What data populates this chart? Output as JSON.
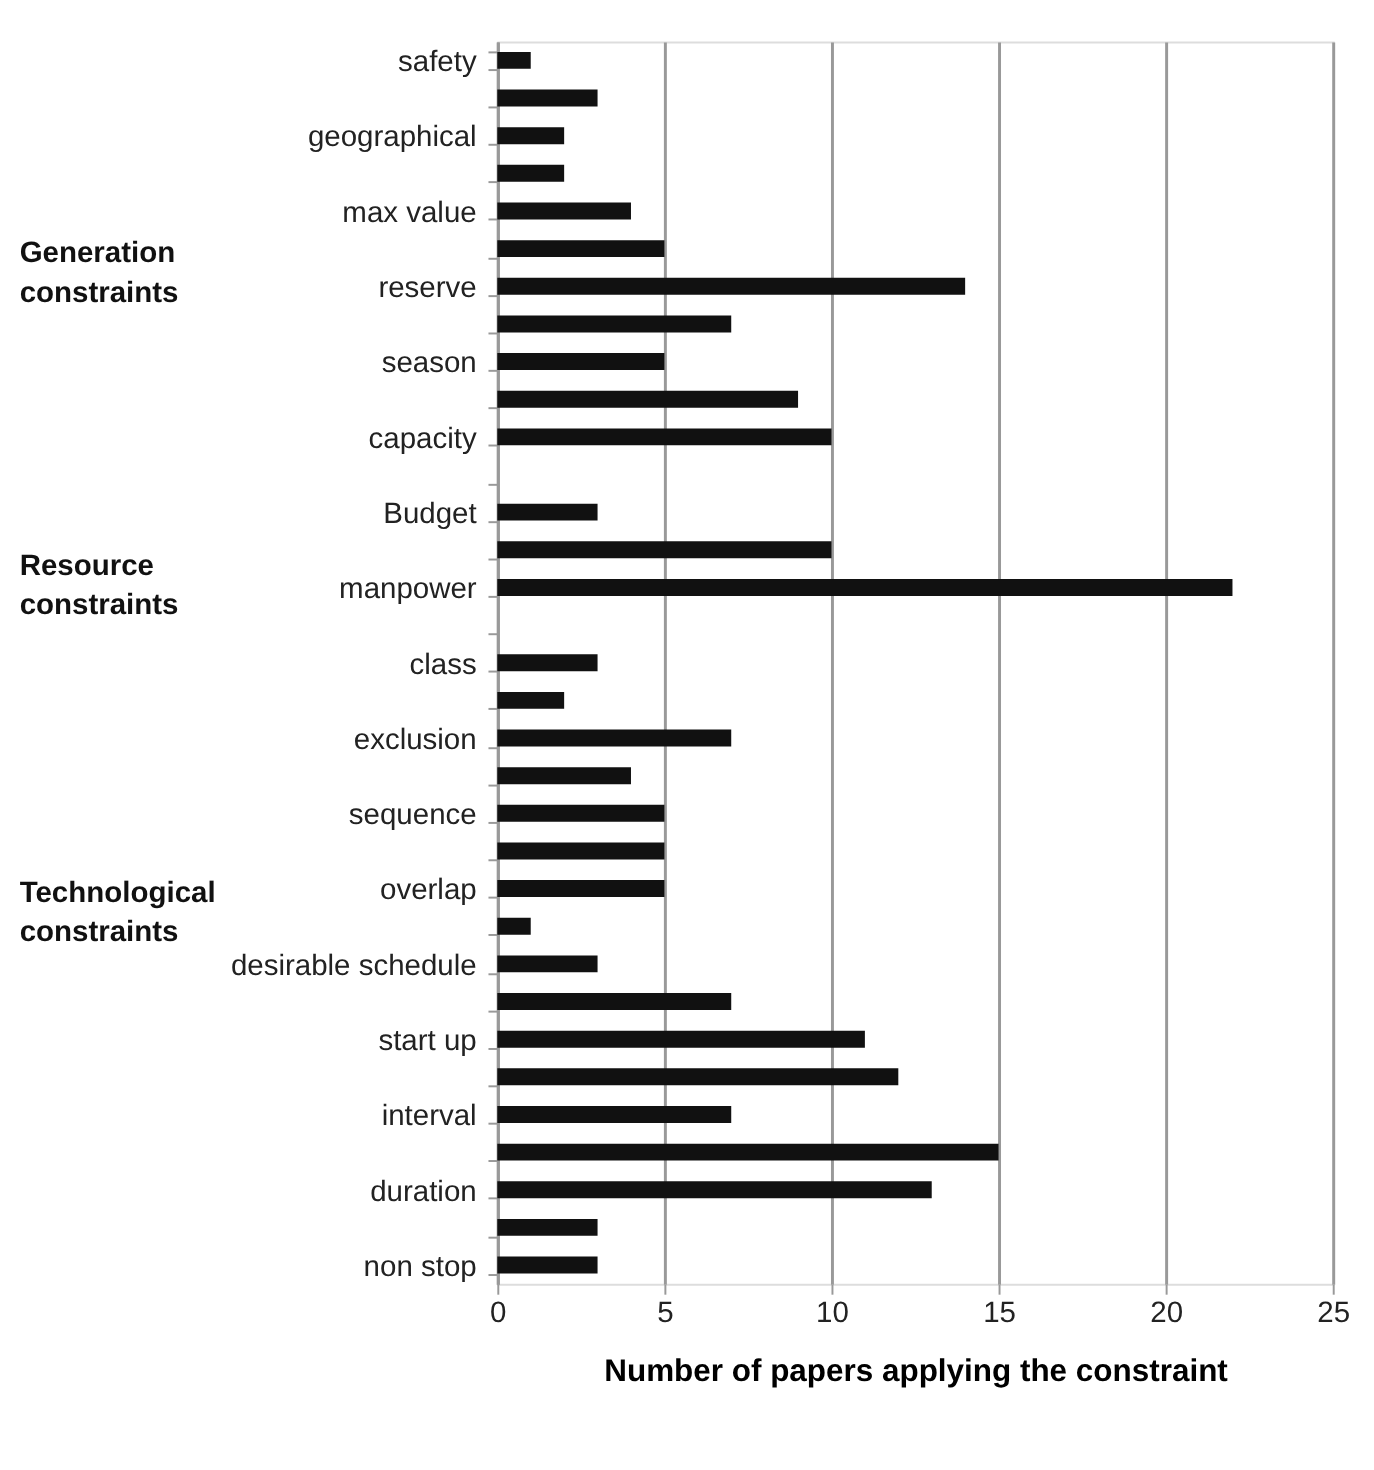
{
  "chart_data": {
    "type": "bar",
    "orientation": "horizontal",
    "xlabel": "Number of papers applying the constraint",
    "categories": [
      "safety",
      null,
      "geographical",
      null,
      "max value",
      null,
      "reserve",
      null,
      "season",
      null,
      "capacity",
      null,
      "Budget",
      null,
      "manpower",
      null,
      "class",
      null,
      "exclusion",
      null,
      "sequence",
      null,
      "overlap",
      null,
      "desirable schedule",
      null,
      "start up",
      null,
      "interval",
      null,
      "duration",
      null,
      "non stop"
    ],
    "values": [
      1,
      3,
      2,
      2,
      4,
      5,
      14,
      7,
      5,
      9,
      10,
      null,
      3,
      10,
      22,
      null,
      3,
      2,
      7,
      4,
      5,
      5,
      5,
      1,
      3,
      7,
      11,
      12,
      7,
      15,
      13,
      3,
      3
    ],
    "color": "#111111",
    "xlim": [
      0,
      25
    ],
    "xticks": [
      0,
      5,
      10,
      15,
      20,
      25
    ],
    "grid": "x",
    "annotations": [
      "Generation constraints",
      "Resource constraints",
      "Technological constraints"
    ]
  }
}
